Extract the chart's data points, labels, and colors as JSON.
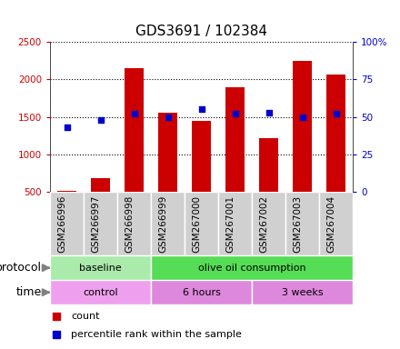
{
  "title": "GDS3691 / 102384",
  "samples": [
    "GSM266996",
    "GSM266997",
    "GSM266998",
    "GSM266999",
    "GSM267000",
    "GSM267001",
    "GSM267002",
    "GSM267003",
    "GSM267004"
  ],
  "counts": [
    520,
    680,
    2150,
    1560,
    1450,
    1900,
    1220,
    2250,
    2060
  ],
  "percentile_ranks": [
    43,
    48,
    52,
    50,
    55,
    52,
    53,
    50,
    52
  ],
  "bar_color": "#cc0000",
  "dot_color": "#0000cc",
  "ylim_left": [
    500,
    2500
  ],
  "ylim_right": [
    0,
    100
  ],
  "yticks_left": [
    500,
    1000,
    1500,
    2000,
    2500
  ],
  "yticks_right": [
    0,
    25,
    50,
    75,
    100
  ],
  "protocol_groups": [
    {
      "label": "baseline",
      "start": 0,
      "end": 3,
      "color": "#aaeaaa"
    },
    {
      "label": "olive oil consumption",
      "start": 3,
      "end": 9,
      "color": "#55dd55"
    }
  ],
  "time_groups": [
    {
      "label": "control",
      "start": 0,
      "end": 3,
      "color": "#eea0ee"
    },
    {
      "label": "6 hours",
      "start": 3,
      "end": 6,
      "color": "#dd88dd"
    },
    {
      "label": "3 weeks",
      "start": 6,
      "end": 9,
      "color": "#dd88dd"
    }
  ],
  "legend_count_label": "count",
  "legend_percentile_label": "percentile rank within the sample",
  "protocol_label": "protocol",
  "time_label": "time",
  "title_fontsize": 11,
  "tick_fontsize": 7.5,
  "label_fontsize": 9,
  "bar_width": 0.55
}
